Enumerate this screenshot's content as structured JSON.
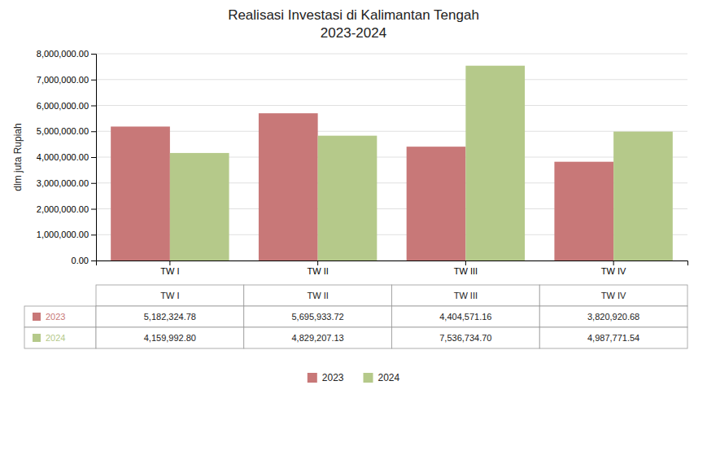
{
  "chart_data": {
    "type": "bar",
    "title": "Realisasi Investasi di Kalimantan Tengah",
    "subtitle": "2023-2024",
    "y_label": "dlm juta Rupiah",
    "categories": [
      "TW I",
      "TW II",
      "TW III",
      "TW IV"
    ],
    "series": [
      {
        "name": "2023",
        "color": "#C87878",
        "values": [
          5182324.78,
          5695933.72,
          4404571.16,
          3820920.68
        ],
        "value_labels": [
          "5,182,324.78",
          "5,695,933.72",
          "4,404,571.16",
          "3,820,920.68"
        ]
      },
      {
        "name": "2024",
        "color": "#B5C98A",
        "values": [
          4159992.8,
          4829207.13,
          7536734.7,
          4987771.54
        ],
        "value_labels": [
          "4,159,992.80",
          "4,829,207.13",
          "7,536,734.70",
          "4,987,771.54"
        ]
      }
    ],
    "ylim": [
      0,
      8000000
    ],
    "yticks": [
      {
        "value": 0,
        "label": "0.00"
      },
      {
        "value": 1000000,
        "label": "1,000,000.00"
      },
      {
        "value": 2000000,
        "label": "2,000,000.00"
      },
      {
        "value": 3000000,
        "label": "3,000,000.00"
      },
      {
        "value": 4000000,
        "label": "4,000,000.00"
      },
      {
        "value": 5000000,
        "label": "5,000,000.00"
      },
      {
        "value": 6000000,
        "label": "6,000,000.00"
      },
      {
        "value": 7000000,
        "label": "7,000,000.00"
      },
      {
        "value": 8000000,
        "label": "8,000,000.00"
      }
    ],
    "grid": true,
    "legend": "bottom"
  }
}
